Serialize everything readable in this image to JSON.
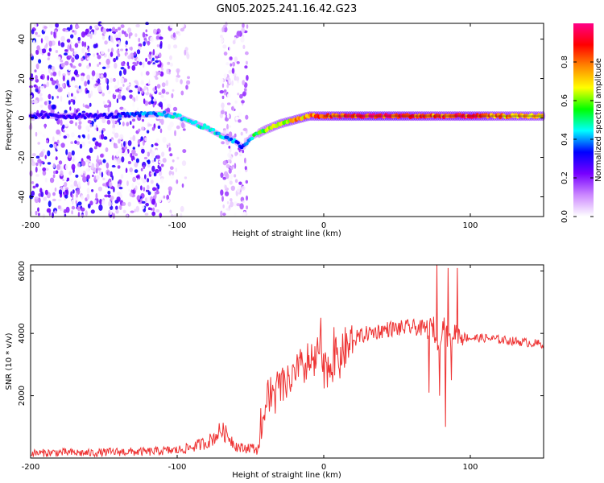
{
  "title": "GN05.2025.241.16.42.G23",
  "chart_data": [
    {
      "type": "heatmap",
      "xlabel": "Height of straight line (km)",
      "ylabel": "Frequency (Hz)",
      "xlim": [
        -200,
        150
      ],
      "ylim": [
        -50,
        48
      ],
      "xticks": [
        -200,
        -100,
        0,
        100
      ],
      "yticks": [
        -40,
        -20,
        0,
        20,
        40
      ],
      "xtick_labels": [
        "-200",
        "-100",
        "0",
        "100"
      ],
      "ytick_labels": [
        "-40",
        "-20",
        "0",
        "20",
        "40"
      ],
      "colorbar": {
        "label": "Normalized spectral amplitude",
        "range": [
          0.0,
          1.0
        ],
        "ticks": [
          0.0,
          0.2,
          0.4,
          0.6,
          0.8
        ],
        "tick_labels": [
          "0.0",
          "0.2",
          "0.4",
          "0.6",
          "0.8"
        ],
        "colors": [
          "#ffffff",
          "#cc88ff",
          "#7700ff",
          "#0000ff",
          "#00ffff",
          "#00ff00",
          "#ffff00",
          "#ff8800",
          "#ff0000",
          "#ff0088"
        ]
      },
      "ridge": {
        "x": [
          -200,
          -150,
          -110,
          -100,
          -90,
          -80,
          -70,
          -60,
          -55,
          -50,
          -45,
          -40,
          -30,
          -20,
          -10,
          0,
          10,
          20,
          40,
          60,
          80,
          100,
          120,
          150
        ],
        "freq": [
          1,
          1,
          2,
          1,
          -2,
          -5,
          -9,
          -12,
          -15,
          -10,
          -8,
          -6,
          -3,
          -1,
          1,
          1,
          1,
          1,
          1,
          1,
          1,
          1,
          1,
          1
        ],
        "amplitude": [
          0.3,
          0.3,
          0.45,
          0.45,
          0.5,
          0.5,
          0.45,
          0.4,
          0.35,
          0.5,
          0.55,
          0.6,
          0.7,
          0.75,
          0.8,
          0.85,
          0.9,
          0.95,
          0.95,
          0.9,
          0.85,
          0.9,
          0.8,
          0.75
        ]
      }
    },
    {
      "type": "line",
      "xlabel": "Height of straight line (km)",
      "ylabel": "SNR (10 * v/v)",
      "xlim": [
        -200,
        150
      ],
      "ylim": [
        0,
        6200
      ],
      "xticks": [
        -200,
        -100,
        0,
        100
      ],
      "yticks": [
        2000,
        4000,
        6000
      ],
      "xtick_labels": [
        "-200",
        "-100",
        "0",
        "100"
      ],
      "ytick_labels": [
        "2000",
        "4000",
        "6000"
      ],
      "color": "#ee3333",
      "series": [
        {
          "name": "SNR",
          "x": [
            -200,
            -180,
            -160,
            -140,
            -120,
            -110,
            -100,
            -90,
            -80,
            -75,
            -70,
            -65,
            -60,
            -55,
            -50,
            -45,
            -40,
            -38,
            -35,
            -30,
            -25,
            -20,
            -15,
            -10,
            -5,
            -3,
            0,
            5,
            10,
            15,
            20,
            25,
            30,
            35,
            40,
            45,
            50,
            60,
            70,
            75,
            78,
            80,
            82,
            85,
            88,
            90,
            95,
            100,
            110,
            120,
            130,
            140,
            150
          ],
          "y": [
            150,
            180,
            160,
            200,
            200,
            230,
            250,
            350,
            500,
            650,
            900,
            700,
            400,
            300,
            350,
            250,
            1500,
            1800,
            2000,
            2200,
            2400,
            2600,
            2800,
            3000,
            3100,
            3600,
            2700,
            3100,
            3200,
            3500,
            3800,
            3900,
            4000,
            4050,
            4100,
            4150,
            4150,
            4200,
            4150,
            4200,
            3300,
            4100,
            4300,
            3700,
            4000,
            4050,
            3900,
            3850,
            3850,
            3800,
            3750,
            3700,
            3650
          ],
          "spikes": [
            {
              "x": -43,
              "y": 1600
            },
            {
              "x": -36,
              "y": 2600
            },
            {
              "x": -28,
              "y": 2900
            },
            {
              "x": -15,
              "y": 3400
            },
            {
              "x": -2,
              "y": 4500
            },
            {
              "x": 7,
              "y": 4200
            },
            {
              "x": 72,
              "y": 2100
            },
            {
              "x": 77,
              "y": 6200
            },
            {
              "x": 79,
              "y": 2000
            },
            {
              "x": 83,
              "y": 1000
            },
            {
              "x": 85,
              "y": 6100
            },
            {
              "x": 87,
              "y": 2500
            },
            {
              "x": 91,
              "y": 6100
            }
          ]
        }
      ]
    }
  ]
}
